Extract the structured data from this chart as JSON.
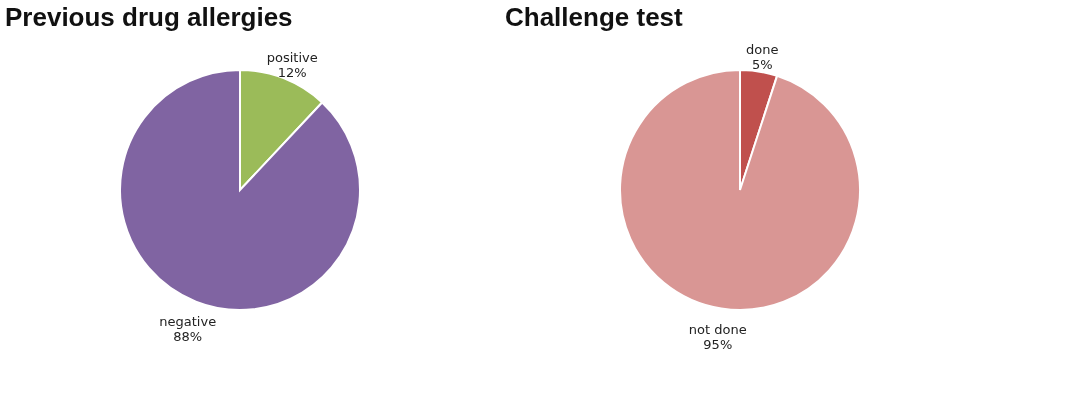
{
  "chart_data": [
    {
      "type": "pie",
      "title": "Previous drug allergies",
      "categories": [
        "positive",
        "negative"
      ],
      "values": [
        12,
        88
      ],
      "colors": [
        "#9bbb59",
        "#8064a2"
      ],
      "value_labels": [
        "12%",
        "88%"
      ]
    },
    {
      "type": "pie",
      "title": "Challenge test",
      "categories": [
        "done",
        "not done"
      ],
      "values": [
        5,
        95
      ],
      "colors": [
        "#c0504d",
        "#d99694"
      ],
      "value_labels": [
        "5%",
        "95%"
      ]
    }
  ]
}
